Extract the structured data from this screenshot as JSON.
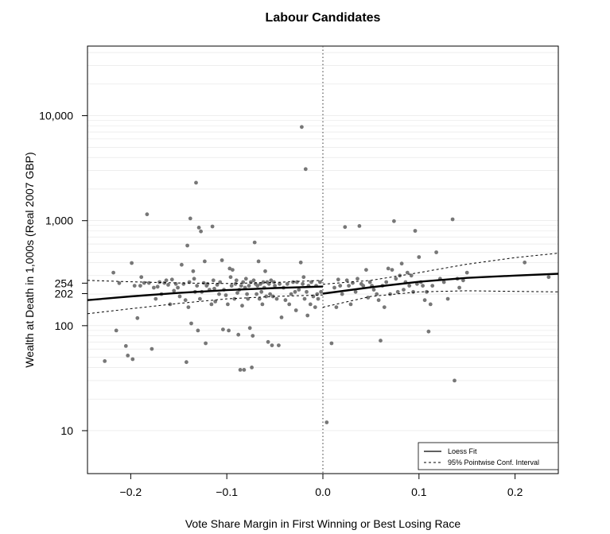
{
  "chart_data": {
    "type": "scatter",
    "title": "Labour Candidates",
    "xlabel": "Vote Share Margin in First Winning or Best Losing Race",
    "ylabel": "Wealth at Death in 1,000s (Real 2007 GBP)",
    "xlim": [
      -0.245,
      0.245
    ],
    "ylim": [
      3.9,
      46000
    ],
    "yscale": "log",
    "x_ticks": [
      {
        "value": -0.2,
        "label": "−0.2"
      },
      {
        "value": -0.1,
        "label": "−0.1"
      },
      {
        "value": 0.0,
        "label": "0.0"
      },
      {
        "value": 0.1,
        "label": "0.1"
      },
      {
        "value": 0.2,
        "label": "0.2"
      }
    ],
    "y_ticks": [
      {
        "value": 10,
        "label": "10"
      },
      {
        "value": 100,
        "label": "100"
      },
      {
        "value": 202,
        "label": "202"
      },
      {
        "value": 254,
        "label": "254"
      },
      {
        "value": 1000,
        "label": "1,000"
      },
      {
        "value": 10000,
        "label": "10,000"
      }
    ],
    "cutoff": 0.0,
    "colors": {
      "points": "#777777",
      "fit": "#000000",
      "ci": "#000000",
      "cutoff": "#555555",
      "grid": "#e3e3e3"
    },
    "points": [
      [
        -0.227,
        46
      ],
      [
        -0.218,
        320
      ],
      [
        -0.215,
        90
      ],
      [
        -0.212,
        254
      ],
      [
        -0.205,
        64
      ],
      [
        -0.203,
        52
      ],
      [
        -0.199,
        395
      ],
      [
        -0.198,
        48
      ],
      [
        -0.196,
        240
      ],
      [
        -0.193,
        118
      ],
      [
        -0.19,
        240
      ],
      [
        -0.189,
        290
      ],
      [
        -0.186,
        255
      ],
      [
        -0.183,
        1150
      ],
      [
        -0.181,
        255
      ],
      [
        -0.178,
        60
      ],
      [
        -0.176,
        230
      ],
      [
        -0.174,
        180
      ],
      [
        -0.172,
        235
      ],
      [
        -0.17,
        260
      ],
      [
        -0.168,
        200
      ],
      [
        -0.165,
        255
      ],
      [
        -0.163,
        270
      ],
      [
        -0.161,
        245
      ],
      [
        -0.159,
        160
      ],
      [
        -0.157,
        275
      ],
      [
        -0.155,
        215
      ],
      [
        -0.153,
        250
      ],
      [
        -0.151,
        230
      ],
      [
        -0.149,
        190
      ],
      [
        -0.147,
        380
      ],
      [
        -0.145,
        250
      ],
      [
        -0.143,
        175
      ],
      [
        -0.142,
        45
      ],
      [
        -0.141,
        580
      ],
      [
        -0.14,
        150
      ],
      [
        -0.139,
        260
      ],
      [
        -0.138,
        1050
      ],
      [
        -0.137,
        105
      ],
      [
        -0.135,
        330
      ],
      [
        -0.134,
        280
      ],
      [
        -0.133,
        210
      ],
      [
        -0.132,
        2300
      ],
      [
        -0.131,
        240
      ],
      [
        -0.13,
        90
      ],
      [
        -0.129,
        860
      ],
      [
        -0.128,
        180
      ],
      [
        -0.127,
        790
      ],
      [
        -0.126,
        210
      ],
      [
        -0.124,
        255
      ],
      [
        -0.123,
        410
      ],
      [
        -0.122,
        68
      ],
      [
        -0.121,
        240
      ],
      [
        -0.12,
        250
      ],
      [
        -0.118,
        220
      ],
      [
        -0.116,
        160
      ],
      [
        -0.115,
        880
      ],
      [
        -0.114,
        270
      ],
      [
        -0.113,
        225
      ],
      [
        -0.112,
        170
      ],
      [
        -0.11,
        245
      ],
      [
        -0.108,
        200
      ],
      [
        -0.107,
        260
      ],
      [
        -0.105,
        420
      ],
      [
        -0.104,
        92
      ],
      [
        -0.103,
        220
      ],
      [
        -0.101,
        195
      ],
      [
        -0.099,
        160
      ],
      [
        -0.098,
        90
      ],
      [
        -0.097,
        350
      ],
      [
        -0.096,
        290
      ],
      [
        -0.095,
        240
      ],
      [
        -0.094,
        340
      ],
      [
        -0.092,
        180
      ],
      [
        -0.091,
        250
      ],
      [
        -0.09,
        270
      ],
      [
        -0.089,
        205
      ],
      [
        -0.088,
        82
      ],
      [
        -0.087,
        220
      ],
      [
        -0.086,
        38
      ],
      [
        -0.085,
        240
      ],
      [
        -0.084,
        155
      ],
      [
        -0.083,
        260
      ],
      [
        -0.082,
        38
      ],
      [
        -0.081,
        230
      ],
      [
        -0.08,
        280
      ],
      [
        -0.079,
        200
      ],
      [
        -0.078,
        180
      ],
      [
        -0.077,
        240
      ],
      [
        -0.076,
        95
      ],
      [
        -0.075,
        260
      ],
      [
        -0.074,
        40
      ],
      [
        -0.073,
        80
      ],
      [
        -0.072,
        270
      ],
      [
        -0.071,
        620
      ],
      [
        -0.07,
        250
      ],
      [
        -0.069,
        200
      ],
      [
        -0.068,
        240
      ],
      [
        -0.067,
        410
      ],
      [
        -0.066,
        180
      ],
      [
        -0.065,
        250
      ],
      [
        -0.064,
        210
      ],
      [
        -0.063,
        160
      ],
      [
        -0.062,
        260
      ],
      [
        -0.061,
        230
      ],
      [
        -0.06,
        330
      ],
      [
        -0.059,
        190
      ],
      [
        -0.058,
        260
      ],
      [
        -0.057,
        70
      ],
      [
        -0.056,
        250
      ],
      [
        -0.055,
        200
      ],
      [
        -0.054,
        270
      ],
      [
        -0.053,
        65
      ],
      [
        -0.052,
        190
      ],
      [
        -0.051,
        260
      ],
      [
        -0.05,
        240
      ],
      [
        -0.048,
        180
      ],
      [
        -0.046,
        65
      ],
      [
        -0.045,
        250
      ],
      [
        -0.043,
        120
      ],
      [
        -0.041,
        230
      ],
      [
        -0.039,
        175
      ],
      [
        -0.037,
        250
      ],
      [
        -0.035,
        160
      ],
      [
        -0.033,
        200
      ],
      [
        -0.031,
        260
      ],
      [
        -0.029,
        210
      ],
      [
        -0.028,
        140
      ],
      [
        -0.027,
        260
      ],
      [
        -0.025,
        220
      ],
      [
        -0.023,
        400
      ],
      [
        -0.022,
        7800
      ],
      [
        -0.021,
        250
      ],
      [
        -0.02,
        290
      ],
      [
        -0.019,
        180
      ],
      [
        -0.018,
        3100
      ],
      [
        -0.017,
        210
      ],
      [
        -0.016,
        125
      ],
      [
        -0.015,
        240
      ],
      [
        -0.013,
        160
      ],
      [
        -0.012,
        260
      ],
      [
        -0.01,
        190
      ],
      [
        -0.008,
        150
      ],
      [
        -0.007,
        240
      ],
      [
        -0.006,
        200
      ],
      [
        -0.005,
        180
      ],
      [
        -0.003,
        260
      ],
      [
        -0.002,
        210
      ],
      [
        0.004,
        12
      ],
      [
        0.009,
        68
      ],
      [
        0.012,
        230
      ],
      [
        0.014,
        150
      ],
      [
        0.016,
        275
      ],
      [
        0.018,
        240
      ],
      [
        0.02,
        200
      ],
      [
        0.023,
        870
      ],
      [
        0.025,
        270
      ],
      [
        0.027,
        240
      ],
      [
        0.029,
        160
      ],
      [
        0.031,
        255
      ],
      [
        0.034,
        210
      ],
      [
        0.036,
        280
      ],
      [
        0.038,
        890
      ],
      [
        0.04,
        250
      ],
      [
        0.042,
        240
      ],
      [
        0.045,
        340
      ],
      [
        0.047,
        185
      ],
      [
        0.049,
        260
      ],
      [
        0.051,
        240
      ],
      [
        0.053,
        220
      ],
      [
        0.056,
        200
      ],
      [
        0.058,
        175
      ],
      [
        0.06,
        72
      ],
      [
        0.062,
        240
      ],
      [
        0.064,
        150
      ],
      [
        0.066,
        260
      ],
      [
        0.068,
        350
      ],
      [
        0.07,
        200
      ],
      [
        0.072,
        340
      ],
      [
        0.074,
        990
      ],
      [
        0.076,
        280
      ],
      [
        0.078,
        210
      ],
      [
        0.08,
        300
      ],
      [
        0.082,
        390
      ],
      [
        0.084,
        220
      ],
      [
        0.086,
        260
      ],
      [
        0.088,
        320
      ],
      [
        0.09,
        240
      ],
      [
        0.092,
        300
      ],
      [
        0.094,
        210
      ],
      [
        0.096,
        800
      ],
      [
        0.098,
        250
      ],
      [
        0.1,
        450
      ],
      [
        0.102,
        260
      ],
      [
        0.104,
        240
      ],
      [
        0.106,
        175
      ],
      [
        0.108,
        210
      ],
      [
        0.11,
        88
      ],
      [
        0.112,
        160
      ],
      [
        0.114,
        240
      ],
      [
        0.118,
        500
      ],
      [
        0.122,
        280
      ],
      [
        0.126,
        260
      ],
      [
        0.13,
        180
      ],
      [
        0.135,
        1030
      ],
      [
        0.137,
        30
      ],
      [
        0.14,
        280
      ],
      [
        0.142,
        230
      ],
      [
        0.146,
        270
      ],
      [
        0.15,
        320
      ],
      [
        0.21,
        400
      ],
      [
        0.235,
        290
      ]
    ],
    "fit": [
      [
        -0.245,
        175
      ],
      [
        -0.2,
        190
      ],
      [
        -0.15,
        205
      ],
      [
        -0.1,
        218
      ],
      [
        -0.05,
        228
      ],
      [
        0.0,
        236
      ],
      [
        0.0,
        202
      ],
      [
        0.05,
        232
      ],
      [
        0.1,
        262
      ],
      [
        0.15,
        285
      ],
      [
        0.2,
        300
      ],
      [
        0.245,
        312
      ]
    ],
    "ci_upper": [
      [
        -0.245,
        270
      ],
      [
        -0.2,
        262
      ],
      [
        -0.15,
        255
      ],
      [
        -0.1,
        252
      ],
      [
        -0.05,
        258
      ],
      [
        0.0,
        270
      ],
      [
        0.0,
        248
      ],
      [
        0.05,
        270
      ],
      [
        0.1,
        320
      ],
      [
        0.15,
        385
      ],
      [
        0.2,
        445
      ],
      [
        0.245,
        490
      ]
    ],
    "ci_lower": [
      [
        -0.245,
        130
      ],
      [
        -0.2,
        145
      ],
      [
        -0.15,
        163
      ],
      [
        -0.1,
        180
      ],
      [
        -0.05,
        190
      ],
      [
        0.0,
        196
      ],
      [
        0.0,
        150
      ],
      [
        0.05,
        190
      ],
      [
        0.1,
        210
      ],
      [
        0.15,
        215
      ],
      [
        0.2,
        212
      ],
      [
        0.245,
        210
      ]
    ],
    "legend": {
      "position": "bottom-right",
      "entries": [
        {
          "label": "Loess Fit",
          "style": "solid"
        },
        {
          "label": "95% Pointwise Conf. Interval",
          "style": "dashed"
        }
      ]
    }
  }
}
